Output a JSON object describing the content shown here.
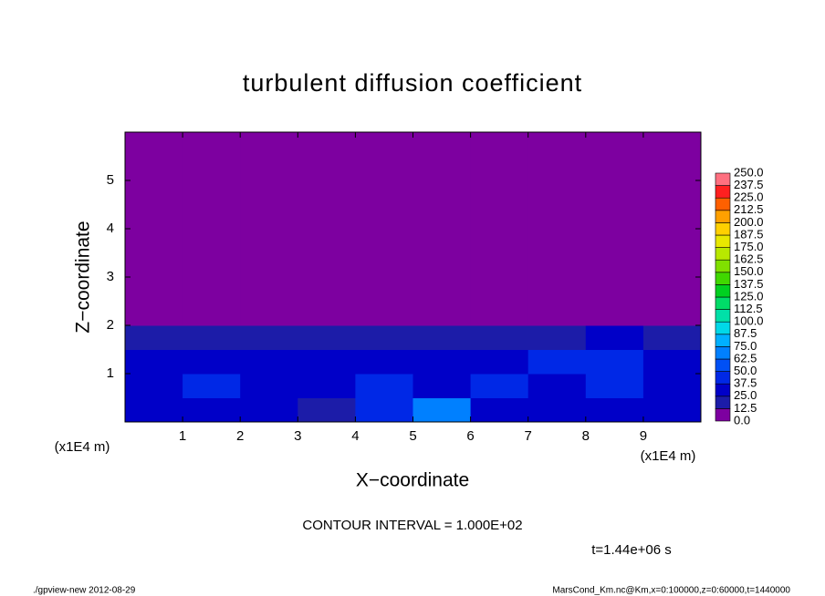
{
  "chart_data": {
    "type": "heatmap",
    "title": "turbulent diffusion coefficient",
    "xlabel": "X−coordinate",
    "ylabel": "Z−coordinate",
    "x_unit": "(x1E4 m)",
    "contour_interval": "CONTOUR INTERVAL = 1.000E+02",
    "time_label": "t=1.44e+06 s",
    "footer_left": "./gpview-new  2012-08-29",
    "footer_right": "MarsCond_Km.nc@Km,x=0:100000,z=0:60000,t=1440000",
    "xlim": [
      0,
      10
    ],
    "ylim": [
      0,
      6
    ],
    "xticks": [
      1,
      2,
      3,
      4,
      5,
      6,
      7,
      8,
      9
    ],
    "yticks": [
      1,
      2,
      3,
      4,
      5
    ],
    "x_edges": [
      0,
      1,
      2,
      3,
      4,
      5,
      6,
      7,
      8,
      9,
      10
    ],
    "z_edges": [
      0,
      0.5,
      1,
      1.5,
      2,
      6
    ],
    "values": [
      [
        30,
        25,
        28,
        20,
        45,
        70,
        35,
        30,
        28,
        30
      ],
      [
        35,
        40,
        30,
        25,
        40,
        30,
        40,
        35,
        38,
        35
      ],
      [
        30,
        35,
        28,
        30,
        35,
        25,
        35,
        40,
        45,
        30
      ],
      [
        20,
        22,
        20,
        15,
        20,
        18,
        20,
        22,
        25,
        15
      ],
      [
        0,
        0,
        0,
        0,
        0,
        0,
        0,
        0,
        0,
        0
      ]
    ],
    "levels": [
      {
        "value": 0,
        "label": "0.0"
      },
      {
        "value": 12.5,
        "label": "12.5"
      },
      {
        "value": 25,
        "label": "25.0"
      },
      {
        "value": 37.5,
        "label": "37.5"
      },
      {
        "value": 50,
        "label": "50.0"
      },
      {
        "value": 62.5,
        "label": "62.5"
      },
      {
        "value": 75,
        "label": "75.0"
      },
      {
        "value": 87.5,
        "label": "87.5"
      },
      {
        "value": 100,
        "label": "100.0"
      },
      {
        "value": 112.5,
        "label": "112.5"
      },
      {
        "value": 125,
        "label": "125.0"
      },
      {
        "value": 137.5,
        "label": "137.5"
      },
      {
        "value": 150,
        "label": "150.0"
      },
      {
        "value": 162.5,
        "label": "162.5"
      },
      {
        "value": 175,
        "label": "175.0"
      },
      {
        "value": 187.5,
        "label": "187.5"
      },
      {
        "value": 200,
        "label": "200.0"
      },
      {
        "value": 212.5,
        "label": "212.5"
      },
      {
        "value": 225,
        "label": "225.0"
      },
      {
        "value": 237.5,
        "label": "237.5"
      },
      {
        "value": 250,
        "label": "250.0"
      }
    ],
    "colors": [
      "#7d00a0",
      "#1c1ca8",
      "#0000c8",
      "#0028e6",
      "#0050f5",
      "#0080ff",
      "#00b0ff",
      "#00d8e8",
      "#00e0a8",
      "#00dc68",
      "#00d020",
      "#40d800",
      "#80e000",
      "#b8e800",
      "#e8e800",
      "#ffd000",
      "#ffa000",
      "#ff6000",
      "#ff2020",
      "#ff7080"
    ]
  }
}
